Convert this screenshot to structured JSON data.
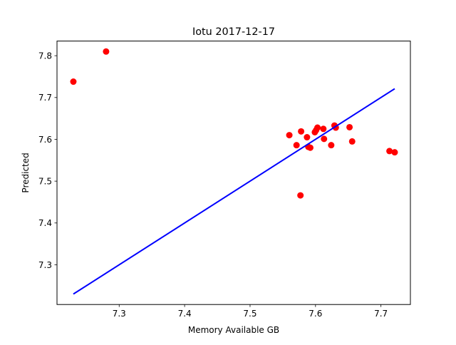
{
  "chart_data": {
    "type": "scatter",
    "title": "Iotu 2017-12-17",
    "xlabel": "Memory Available GB",
    "ylabel": "Predicted",
    "xlim": [
      7.205,
      7.745
    ],
    "ylim": [
      7.205,
      7.835
    ],
    "x_ticks": [
      7.3,
      7.4,
      7.5,
      7.6,
      7.7
    ],
    "x_tick_labels": [
      "7.3",
      "7.4",
      "7.5",
      "7.6",
      "7.7"
    ],
    "y_ticks": [
      7.3,
      7.4,
      7.5,
      7.6,
      7.7,
      7.8
    ],
    "y_tick_labels": [
      "7.3",
      "7.4",
      "7.5",
      "7.6",
      "7.7",
      "7.8"
    ],
    "grid": false,
    "series": [
      {
        "kind": "scatter",
        "color": "#ff0000",
        "points": [
          [
            7.23,
            7.738
          ],
          [
            7.28,
            7.81
          ],
          [
            7.56,
            7.61
          ],
          [
            7.571,
            7.586
          ],
          [
            7.577,
            7.466
          ],
          [
            7.578,
            7.619
          ],
          [
            7.587,
            7.605
          ],
          [
            7.589,
            7.582
          ],
          [
            7.592,
            7.58
          ],
          [
            7.599,
            7.617
          ],
          [
            7.601,
            7.622
          ],
          [
            7.603,
            7.628
          ],
          [
            7.612,
            7.625
          ],
          [
            7.613,
            7.601
          ],
          [
            7.624,
            7.586
          ],
          [
            7.629,
            7.633
          ],
          [
            7.631,
            7.628
          ],
          [
            7.652,
            7.629
          ],
          [
            7.656,
            7.595
          ],
          [
            7.713,
            7.572
          ],
          [
            7.721,
            7.569
          ]
        ]
      },
      {
        "kind": "line",
        "color": "#0000ff",
        "points": [
          [
            7.23,
            7.23
          ],
          [
            7.721,
            7.721
          ]
        ]
      }
    ]
  }
}
